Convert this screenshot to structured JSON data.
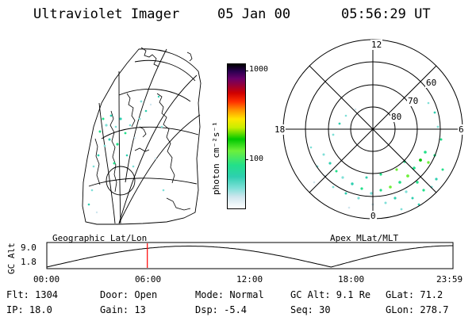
{
  "header": {
    "title": "Ultraviolet Imager",
    "date": "05 Jan 00",
    "time": "05:56:29 UT"
  },
  "geo_panel": {
    "label": "Geographic Lat/Lon"
  },
  "polar_panel": {
    "label": "Apex MLat/MLT",
    "mlt_labels": {
      "top": "12",
      "left": "18",
      "right": "6",
      "bottom": "0"
    },
    "lat_labels": [
      "60",
      "70",
      "80"
    ]
  },
  "colorbar": {
    "unit_label": "photon cm⁻²s⁻¹",
    "ticks": [
      "1000",
      "100"
    ],
    "scale": "log",
    "colors": [
      "#ffffff",
      "#cfe6ee",
      "#7fe0d8",
      "#2ecfb0",
      "#22e08a",
      "#6ef03a",
      "#00c800",
      "#c8ee00",
      "#ffe600",
      "#ff9600",
      "#ff3000",
      "#d00000",
      "#900040",
      "#6a006a",
      "#2a0050",
      "#000000"
    ]
  },
  "timeline": {
    "ylabel": "GC Alt",
    "y_ticks": [
      "9.0",
      "1.8"
    ],
    "x_ticks": [
      "00:00",
      "06:00",
      "12:00",
      "18:00",
      "23:59"
    ],
    "current_time_hours": 5.94,
    "marker_color": "#ff0000"
  },
  "status": {
    "flt": "Flt: 1304",
    "ip": "IP: 18.0",
    "door": "Door: Open",
    "gain": "Gain: 13",
    "mode": "Mode: Normal",
    "dsp": "Dsp:   -5.4",
    "gc_alt": "GC Alt: 9.1 Re",
    "seq": "Seq: 30",
    "glat": "GLat:  71.2",
    "glon": "GLon: 278.7"
  }
}
